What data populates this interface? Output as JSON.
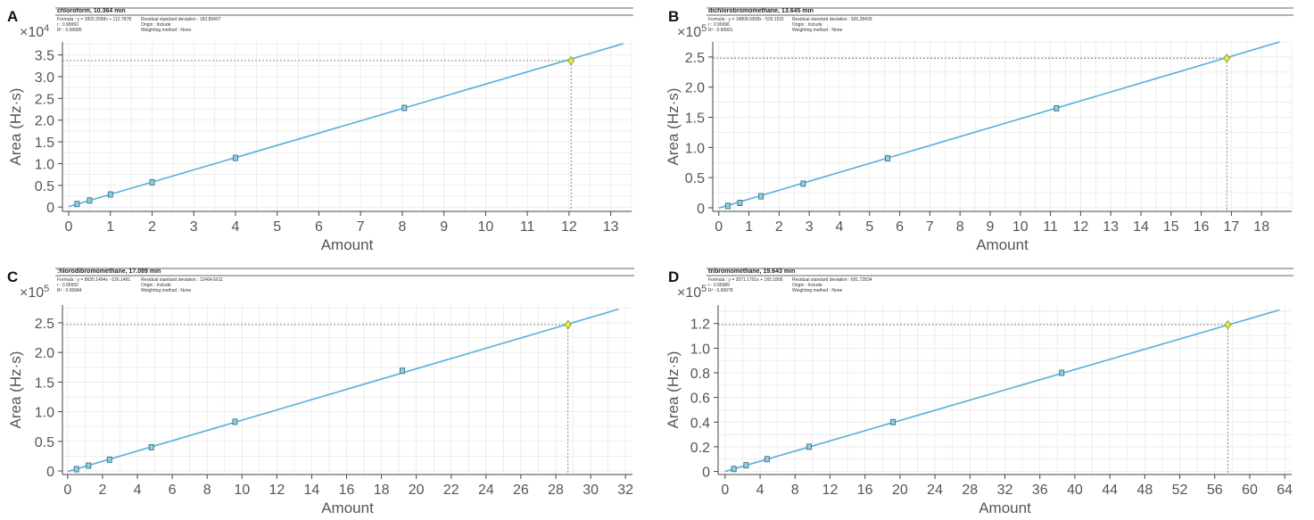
{
  "panels": [
    {
      "letter": "A",
      "header": {
        "title": "chloroform, 10.364 min",
        "formula": "Formula : y = 2820.2058x + 112.7878",
        "r": "r : 0.99992",
        "r2": "R² : 0.99985",
        "rsd": "Residual standard deviation : 183.89407",
        "origin": "Origin : Include",
        "weighting": "Weighting method : None"
      },
      "chart_data": {
        "type": "scatter",
        "xlabel": "Amount",
        "ylabel": "Area (Hz·s)",
        "multiplier": "×10",
        "exponent": "4",
        "x_ticks": [
          "0",
          "1",
          "2",
          "3",
          "4",
          "5",
          "6",
          "7",
          "8",
          "9",
          "10",
          "11",
          "12",
          "13"
        ],
        "y_ticks": [
          "0",
          "0.5",
          "1.0",
          "1.5",
          "2.0",
          "2.5",
          "3.0",
          "3.5"
        ],
        "xlim": [
          -0.15,
          13.5
        ],
        "ylim": [
          -0.1,
          3.8
        ],
        "calibration_points": [
          [
            0.2,
            0.07
          ],
          [
            0.5,
            0.15
          ],
          [
            1.0,
            0.29
          ],
          [
            2.0,
            0.57
          ],
          [
            4.0,
            1.13
          ],
          [
            8.05,
            2.28
          ]
        ],
        "sample_point": [
          12.05,
          3.37
        ],
        "fit_line": [
          [
            0,
            0.01
          ],
          [
            13.3,
            3.76
          ]
        ]
      }
    },
    {
      "letter": "B",
      "header": {
        "title": "dichlorobromomethane, 13.645 min",
        "formula": "Formula : y = 14808.0308x - 529.1531",
        "r": "r : 0.99996",
        "r2": "R² : 0.99991",
        "rsd": "Residual standard deviation : 926.28439",
        "origin": "Origin : Include",
        "weighting": "Weighting method : None"
      },
      "chart_data": {
        "type": "scatter",
        "xlabel": "Amount",
        "ylabel": "Area (Hz·s)",
        "multiplier": "×10",
        "exponent": "5",
        "x_ticks": [
          "0",
          "1",
          "2",
          "3",
          "4",
          "5",
          "6",
          "7",
          "8",
          "9",
          "10",
          "11",
          "12",
          "13",
          "14",
          "15",
          "16",
          "17",
          "18"
        ],
        "y_ticks": [
          "0",
          "0.5",
          "1.0",
          "1.5",
          "2.0",
          "2.5"
        ],
        "xlim": [
          -0.2,
          19.0
        ],
        "ylim": [
          -0.06,
          2.75
        ],
        "calibration_points": [
          [
            0.3,
            0.03
          ],
          [
            0.7,
            0.08
          ],
          [
            1.4,
            0.19
          ],
          [
            2.8,
            0.4
          ],
          [
            5.6,
            0.82
          ],
          [
            11.2,
            1.65
          ]
        ],
        "sample_point": [
          16.85,
          2.48
        ],
        "fit_line": [
          [
            0,
            -0.005
          ],
          [
            18.6,
            2.75
          ]
        ]
      }
    },
    {
      "letter": "C",
      "header": {
        "title": ":hlorodibromomethane, 17.089 min",
        "formula": "Formula : y = 8630.1494x - 626.1481",
        "r": "r : 0.99992",
        "r2": "R² : 0.99984",
        "rsd": "Residual standard deviation : 12464.6611",
        "origin": "Origin : Include",
        "weighting": "Weighting method : None"
      },
      "chart_data": {
        "type": "scatter",
        "xlabel": "Amount",
        "ylabel": "Area (Hz·s)",
        "multiplier": "×10",
        "exponent": "5",
        "x_ticks": [
          "0",
          "2",
          "4",
          "6",
          "8",
          "10",
          "12",
          "14",
          "16",
          "18",
          "20",
          "22",
          "24",
          "26",
          "28",
          "30",
          "32"
        ],
        "y_ticks": [
          "0",
          "0.5",
          "1.0",
          "1.5",
          "2.0",
          "2.5"
        ],
        "xlim": [
          -0.3,
          32.4
        ],
        "ylim": [
          -0.06,
          2.8
        ],
        "calibration_points": [
          [
            0.5,
            0.03
          ],
          [
            1.2,
            0.09
          ],
          [
            2.4,
            0.19
          ],
          [
            4.8,
            0.4
          ],
          [
            9.6,
            0.83
          ],
          [
            19.2,
            1.69
          ]
        ],
        "sample_point": [
          28.7,
          2.47
        ],
        "fit_line": [
          [
            0,
            -0.01
          ],
          [
            31.6,
            2.73
          ]
        ]
      }
    },
    {
      "letter": "D",
      "header": {
        "title": "tribromomethane, 19.643 min",
        "formula": "Formula : y = 2071.1701x + 165.1805",
        "r": "r : 0.99989",
        "r2": "R² : 0.99978",
        "rsd": "Residual standard deviation : 691.72834",
        "origin": "Origin : Include",
        "weighting": "Weighting method : None"
      },
      "chart_data": {
        "type": "scatter",
        "xlabel": "Amount",
        "ylabel": "Area (Hz·s)",
        "multiplier": "×10",
        "exponent": "5",
        "x_ticks": [
          "0",
          "4",
          "8",
          "12",
          "16",
          "20",
          "24",
          "28",
          "32",
          "36",
          "40",
          "44",
          "48",
          "52",
          "56",
          "60",
          "64"
        ],
        "y_ticks": [
          "0",
          "0.2",
          "0.4",
          "0.6",
          "0.8",
          "1.0",
          "1.2"
        ],
        "xlim": [
          -0.8,
          64.8
        ],
        "ylim": [
          -0.025,
          1.35
        ],
        "calibration_points": [
          [
            1.0,
            0.02
          ],
          [
            2.4,
            0.05
          ],
          [
            4.8,
            0.1
          ],
          [
            9.6,
            0.2
          ],
          [
            19.2,
            0.4
          ],
          [
            38.5,
            0.8
          ]
        ],
        "sample_point": [
          57.5,
          1.19
        ],
        "fit_line": [
          [
            0,
            0.0
          ],
          [
            63.4,
            1.31
          ]
        ]
      }
    }
  ],
  "colors": {
    "fit_line": "#5aaedc",
    "calibration_fill": "#8fd0e2",
    "calibration_stroke": "#3a6f86",
    "sample_fill": "#e7ee3a",
    "sample_stroke": "#8a8a20",
    "grid": "#e6e6e6",
    "axis": "#444444",
    "guide": "#777777"
  }
}
